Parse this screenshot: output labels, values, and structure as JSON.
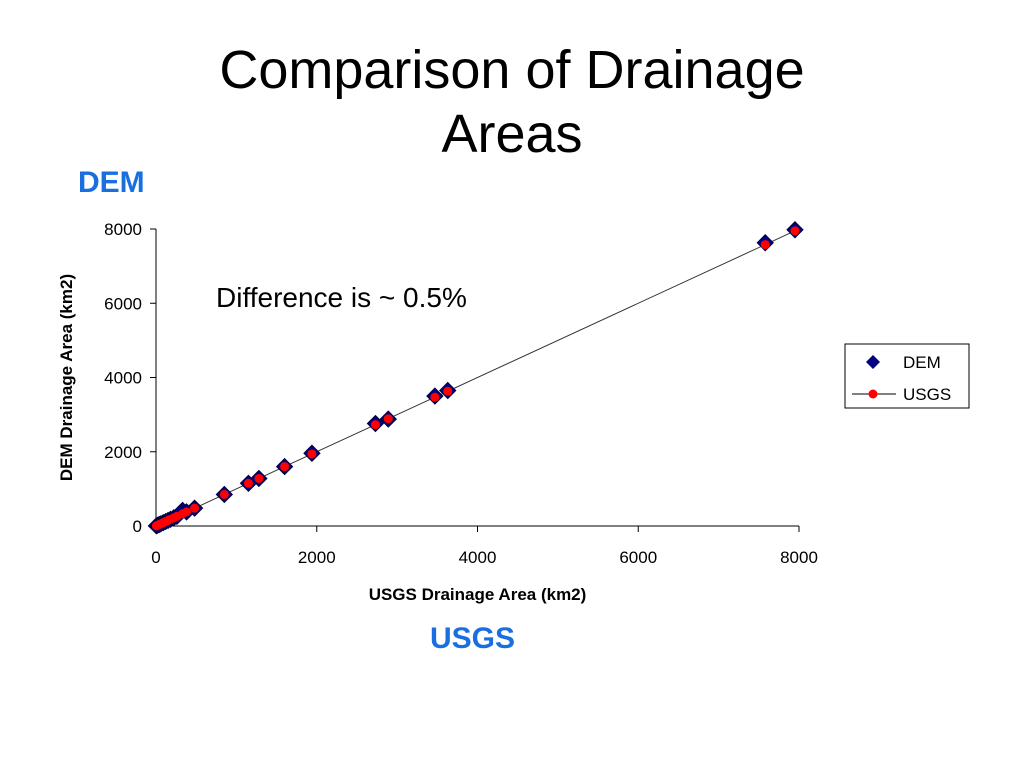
{
  "slide": {
    "title_line1": "Comparison of Drainage",
    "title_line2": "Areas",
    "dem_label": "DEM",
    "usgs_label": "USGS",
    "annotation": "Difference is ~ 0.5%"
  },
  "colors": {
    "dem_marker": "#000080",
    "usgs_marker": "#ff0000",
    "fit_line": "#333333",
    "accent_label": "#1a6fe0"
  },
  "chart_data": {
    "type": "scatter",
    "title": "",
    "xlabel": "USGS Drainage Area (km2)",
    "ylabel": "DEM Drainage Area (km2)",
    "xlim": [
      0,
      8000
    ],
    "ylim": [
      0,
      8000
    ],
    "xticks": [
      0,
      2000,
      4000,
      6000,
      8000
    ],
    "yticks": [
      0,
      2000,
      4000,
      6000,
      8000
    ],
    "grid": false,
    "legend_position": "right",
    "series": [
      {
        "name": "DEM",
        "marker": "diamond",
        "x": [
          5,
          20,
          40,
          60,
          90,
          120,
          150,
          180,
          220,
          260,
          330,
          380,
          480,
          850,
          1150,
          1280,
          1600,
          1940,
          2730,
          2890,
          3470,
          3630,
          7580,
          7950
        ],
        "y": [
          5,
          20,
          40,
          60,
          90,
          120,
          150,
          180,
          220,
          260,
          420,
          380,
          480,
          850,
          1150,
          1280,
          1600,
          1960,
          2760,
          2880,
          3500,
          3650,
          7630,
          7980
        ]
      },
      {
        "name": "USGS",
        "marker": "circle",
        "line": true,
        "x": [
          5,
          20,
          40,
          60,
          90,
          120,
          150,
          180,
          220,
          260,
          330,
          380,
          480,
          850,
          1150,
          1280,
          1600,
          1940,
          2730,
          2890,
          3470,
          3630,
          7580,
          7950
        ],
        "y": [
          5,
          20,
          40,
          60,
          90,
          120,
          150,
          180,
          220,
          260,
          330,
          380,
          480,
          850,
          1150,
          1280,
          1600,
          1940,
          2730,
          2890,
          3470,
          3630,
          7580,
          7950
        ]
      }
    ]
  }
}
